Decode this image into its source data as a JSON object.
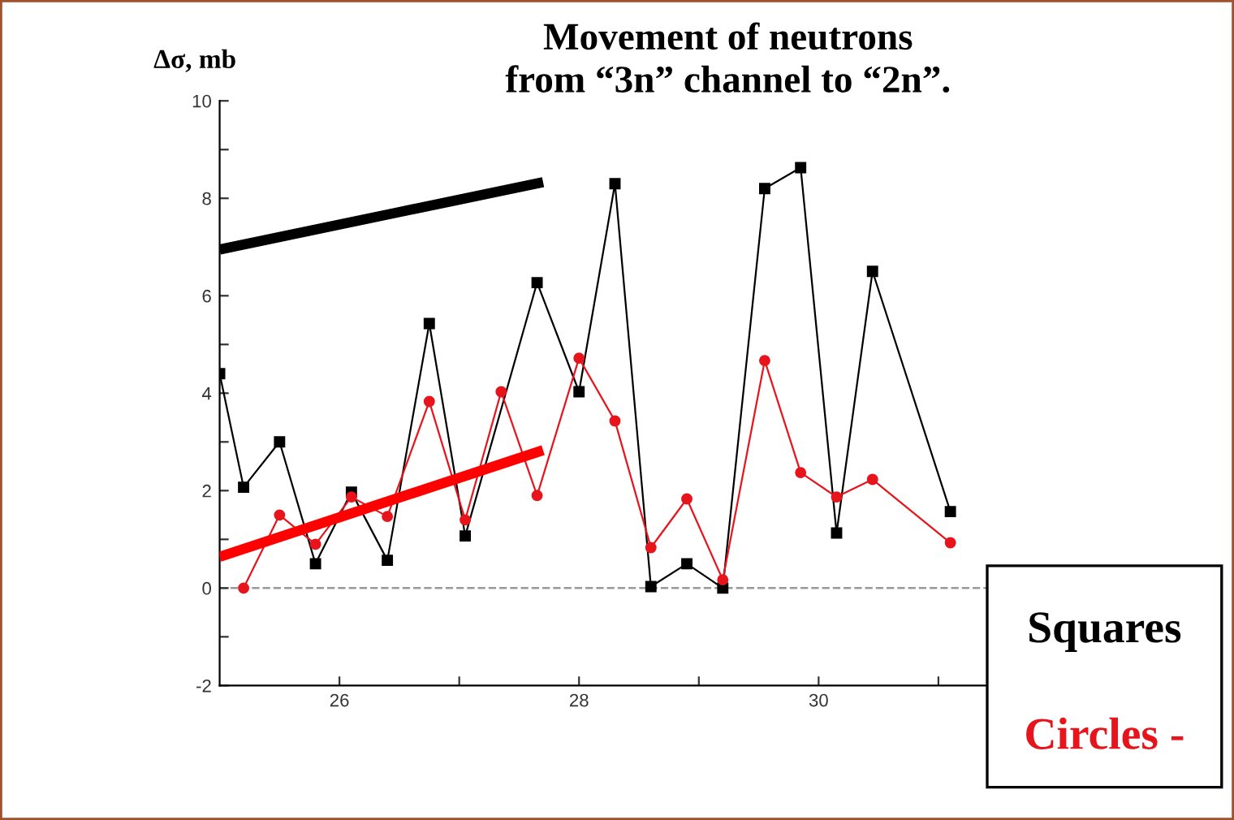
{
  "chart_data": {
    "type": "line",
    "title": "Movement of neutrons\nfrom “3n” channel to “2n”.",
    "ylabel": "Δσ, mb",
    "xlim": [
      25,
      31.5
    ],
    "ylim": [
      -2,
      10
    ],
    "xticks": [
      {
        "value": 26,
        "label": "26"
      },
      {
        "value": 27,
        "label": null
      },
      {
        "value": 28,
        "label": "28"
      },
      {
        "value": 29,
        "label": null
      },
      {
        "value": 30,
        "label": "30"
      },
      {
        "value": 31,
        "label": null
      }
    ],
    "yticks": [
      -2,
      {
        "value": -1,
        "label": null
      },
      0,
      {
        "value": 1,
        "label": null
      },
      2,
      {
        "value": 3,
        "label": null
      },
      4,
      {
        "value": 5,
        "label": null
      },
      6,
      {
        "value": 7,
        "label": null
      },
      8,
      {
        "value": 9,
        "label": null
      },
      10
    ],
    "series": [
      {
        "color": "#000000",
        "marker": "square",
        "x": [
          25.0,
          25.2,
          25.5,
          25.8,
          26.1,
          26.4,
          26.75,
          27.05,
          27.65,
          28.0,
          28.3,
          28.6,
          28.9,
          29.2,
          29.55,
          29.85,
          30.15,
          30.45,
          31.1
        ],
        "values": [
          4.4,
          2.07,
          3.0,
          0.5,
          1.97,
          0.57,
          5.43,
          1.07,
          6.27,
          4.03,
          8.3,
          0.03,
          0.5,
          0.0,
          8.2,
          8.63,
          1.13,
          6.5,
          1.57
        ]
      },
      {
        "color": "#e8141c",
        "marker": "circle",
        "x": [
          25.2,
          25.5,
          25.8,
          26.1,
          26.4,
          26.75,
          27.05,
          27.35,
          27.65,
          28.0,
          28.3,
          28.6,
          28.9,
          29.2,
          29.55,
          29.85,
          30.15,
          30.45,
          31.1
        ],
        "values": [
          0.0,
          1.5,
          0.9,
          1.87,
          1.47,
          3.83,
          1.4,
          4.03,
          1.9,
          4.72,
          3.43,
          0.83,
          1.83,
          0.17,
          4.67,
          2.37,
          1.87,
          2.23,
          0.93
        ]
      },
      {
        "type": "line",
        "color": "#000000",
        "marker": "none",
        "x": [
          25.0,
          27.7
        ],
        "values": [
          6.95,
          8.33
        ]
      },
      {
        "type": "line",
        "color": "#ff0000",
        "marker": "none",
        "x": [
          25.0,
          27.7
        ],
        "values": [
          0.64,
          2.83
        ]
      }
    ],
    "ref_lines": [
      {
        "axis": "y",
        "value": 0,
        "color": "#999999",
        "line_style": "dashed"
      }
    ],
    "grid": false,
    "legend": false,
    "annotations": [
      "Squares",
      "Circles -"
    ]
  }
}
